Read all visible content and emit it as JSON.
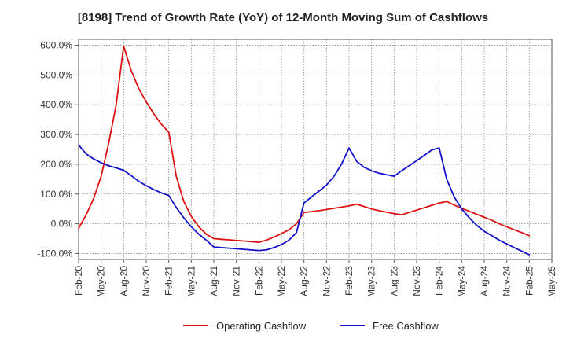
{
  "chart_data": {
    "type": "line",
    "title": "[8198]  Trend of Growth Rate (YoY) of 12-Month Moving Sum of Cashflows",
    "xlabel": "",
    "ylabel": "",
    "ylim": [
      -120,
      620
    ],
    "yticks": [
      600,
      500,
      400,
      300,
      200,
      100,
      0,
      -100
    ],
    "ytick_labels": [
      "600.0%",
      "500.0%",
      "400.0%",
      "300.0%",
      "200.0%",
      "100.0%",
      "0.0%",
      "-100.0%"
    ],
    "x_labels": [
      "Feb-20",
      "May-20",
      "Aug-20",
      "Nov-20",
      "Feb-21",
      "May-21",
      "Aug-21",
      "Nov-21",
      "Feb-22",
      "May-22",
      "Aug-22",
      "Nov-22",
      "Feb-23",
      "May-23",
      "Aug-23",
      "Nov-23",
      "Feb-24",
      "May-24",
      "Aug-24",
      "Nov-24",
      "Feb-25",
      "May-25"
    ],
    "x_months": [
      "2020-02",
      "2020-03",
      "2020-04",
      "2020-05",
      "2020-06",
      "2020-07",
      "2020-08",
      "2020-09",
      "2020-10",
      "2020-11",
      "2020-12",
      "2021-01",
      "2021-02",
      "2021-03",
      "2021-04",
      "2021-05",
      "2021-06",
      "2021-07",
      "2021-08",
      "2021-09",
      "2021-10",
      "2021-11",
      "2021-12",
      "2022-01",
      "2022-02",
      "2022-03",
      "2022-04",
      "2022-05",
      "2022-06",
      "2022-07",
      "2022-08",
      "2022-09",
      "2022-10",
      "2022-11",
      "2022-12",
      "2023-01",
      "2023-02",
      "2023-03",
      "2023-04",
      "2023-05",
      "2023-06",
      "2023-07",
      "2023-08",
      "2023-09",
      "2023-10",
      "2023-11",
      "2023-12",
      "2024-01",
      "2024-02",
      "2024-03",
      "2024-04",
      "2024-05",
      "2024-06",
      "2024-07",
      "2024-08",
      "2024-09",
      "2024-10",
      "2024-11",
      "2024-12",
      "2025-01",
      "2025-02"
    ],
    "grid": true,
    "legend_position": "bottom",
    "series": [
      {
        "name": "Operating Cashflow",
        "color": "#dd1111",
        "values": [
          -15,
          30,
          85,
          160,
          270,
          400,
          597,
          515,
          455,
          410,
          370,
          335,
          308,
          160,
          75,
          25,
          -10,
          -35,
          -50,
          -52,
          -54,
          -56,
          -58,
          -60,
          -62,
          -55,
          -45,
          -33,
          -20,
          0,
          38,
          41,
          44,
          48,
          52,
          56,
          60,
          66,
          58,
          50,
          44,
          39,
          34,
          30,
          38,
          46,
          54,
          62,
          70,
          75,
          63,
          52,
          42,
          32,
          22,
          12,
          0,
          -10,
          -20,
          -30,
          -40
        ]
      },
      {
        "name": "Free Cashflow",
        "color": "#1111cc",
        "values": [
          265,
          235,
          218,
          205,
          195,
          188,
          180,
          162,
          143,
          128,
          115,
          104,
          95,
          55,
          20,
          -10,
          -35,
          -55,
          -78,
          -80,
          -82,
          -84,
          -86,
          -88,
          -90,
          -88,
          -80,
          -70,
          -55,
          -30,
          70,
          90,
          110,
          130,
          160,
          200,
          255,
          210,
          190,
          178,
          170,
          165,
          160,
          178,
          195,
          212,
          230,
          248,
          255,
          150,
          90,
          50,
          20,
          -5,
          -25,
          -40,
          -55,
          -68,
          -80,
          -92,
          -104
        ]
      }
    ]
  }
}
